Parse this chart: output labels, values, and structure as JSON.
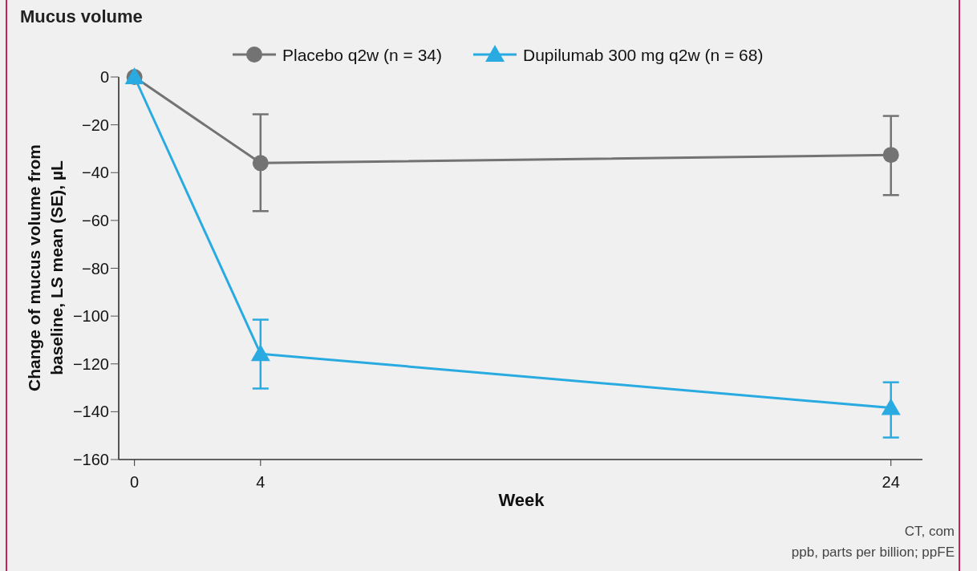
{
  "chart_data": {
    "type": "line",
    "title": "Mucus volume",
    "xlabel": "Week",
    "ylabel": "Change of mucus volume from baseline, LS mean (SE), µL",
    "x": [
      0,
      4,
      24
    ],
    "xlim": [
      -0.5,
      25
    ],
    "xticks": [
      0,
      4,
      24
    ],
    "ylim": [
      -160,
      0
    ],
    "yticks": [
      0,
      -20,
      -40,
      -60,
      -80,
      -100,
      -120,
      -140,
      -160
    ],
    "series": [
      {
        "name": "Placebo q2w (n = 34)",
        "color": "#737373",
        "marker": "circle",
        "values": [
          0,
          -36,
          -32.6
        ],
        "errors": [
          null,
          [
            -56.1,
            -15.6
          ],
          [
            -49.4,
            -16.3
          ]
        ]
      },
      {
        "name": "Dupilumab 300 mg q2w (n = 68)",
        "color": "#29abe2",
        "marker": "triangle",
        "values": [
          0,
          -115.8,
          -138.4
        ],
        "errors": [
          null,
          [
            -130.3,
            -101.5
          ],
          [
            -150.8,
            -127.7
          ]
        ]
      }
    ],
    "legend": "top",
    "grid": false,
    "line_style": "solid",
    "annotations": [
      "CT, com",
      "ppb, parts per billion; ppFE"
    ]
  }
}
